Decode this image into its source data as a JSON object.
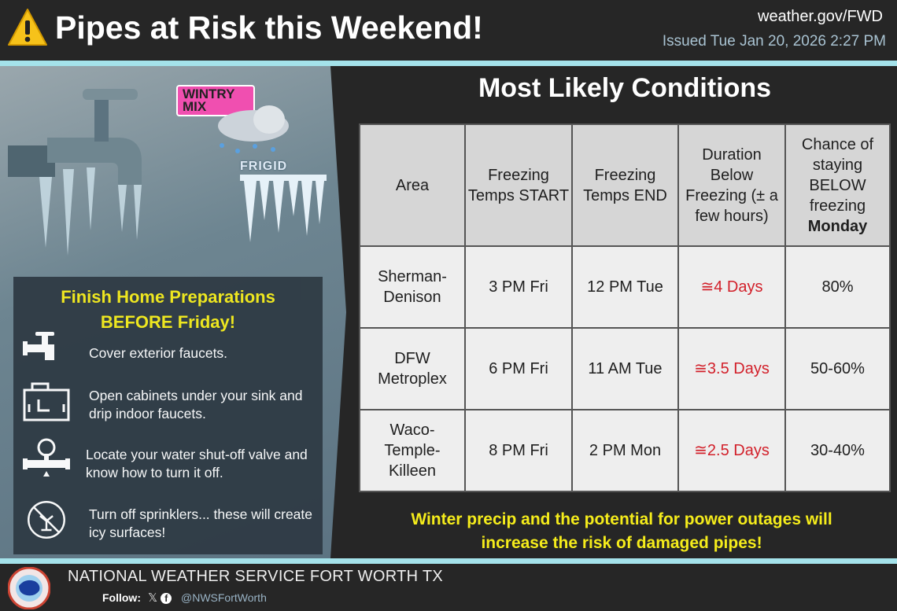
{
  "header": {
    "title": "Pipes at Risk this Weekend!",
    "site": "weather.gov/FWD",
    "issued": "Issued Tue Jan 20, 2026 2:27 PM"
  },
  "graphic": {
    "wintry_label": "WINTRY MIX",
    "frigid_label": "FRIGID"
  },
  "preparations": {
    "title_line1": "Finish Home Preparations",
    "title_line2": "BEFORE Friday!",
    "tips": [
      {
        "icon": "faucet-icon",
        "text": "Cover exterior faucets."
      },
      {
        "icon": "sink-cabinet-icon",
        "text": "Open cabinets under your sink and drip indoor faucets."
      },
      {
        "icon": "shutoff-valve-icon",
        "text": "Locate your water shut-off valve and know how to turn it off."
      },
      {
        "icon": "no-sprinkler-icon",
        "text": "Turn off sprinklers... these will create icy surfaces!"
      }
    ]
  },
  "conditions": {
    "title": "Most Likely Conditions",
    "headers": [
      "Area",
      "Freezing Temps START",
      "Freezing Temps END",
      "Duration Below Freezing (± a few hours)",
      "Chance of staying BELOW freezing",
      "Monday"
    ],
    "rows": [
      [
        "Sherman-Denison",
        "3 PM Fri",
        "12 PM Tue",
        "≅4 Days",
        "80%"
      ],
      [
        "DFW Metroplex",
        "6 PM Fri",
        "11 AM Tue",
        "≅3.5 Days",
        "50-60%"
      ],
      [
        "Waco-Temple-Killeen",
        "8 PM Fri",
        "2 PM Mon",
        "≅2.5 Days",
        "30-40%"
      ]
    ]
  },
  "warning": {
    "line1": "Winter precip and the potential for power outages will",
    "line2": "increase the risk of damaged pipes!"
  },
  "footer": {
    "org": "NATIONAL WEATHER SERVICE FORT WORTH TX",
    "follow": "Follow:",
    "handle": "@NWSFortWorth"
  },
  "colors": {
    "accent_yellow": "#f5ec1b",
    "duration_red": "#d2202a",
    "divider_cyan": "#a4e2ea"
  }
}
